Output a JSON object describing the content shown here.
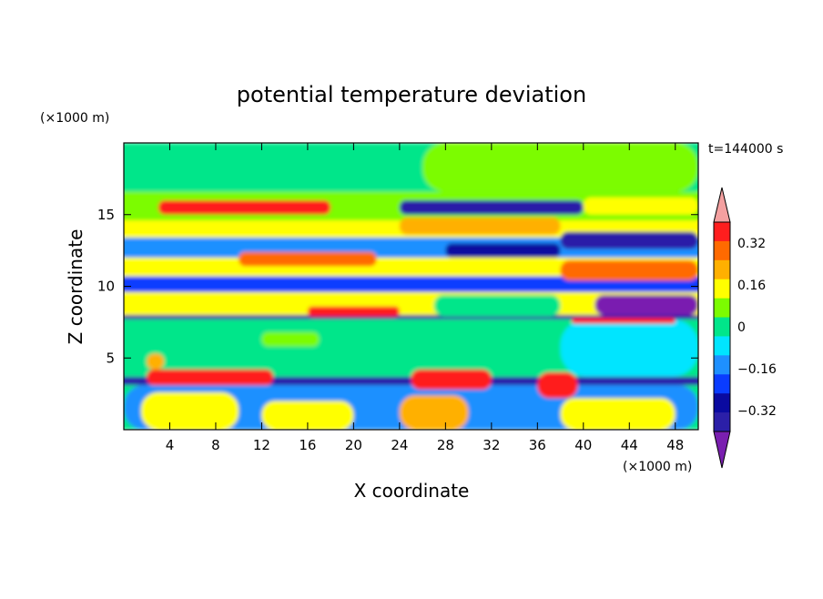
{
  "chart_data": {
    "type": "heatmap",
    "title": "potential temperature deviation",
    "xlabel": "X coordinate",
    "ylabel": "Z coordinate",
    "x_unit": "(×1000 m)",
    "y_unit": "(×1000 m)",
    "time_label": "t=144000 s",
    "xlim": [
      0,
      50
    ],
    "ylim": [
      0,
      20
    ],
    "x_ticks": [
      4,
      8,
      12,
      16,
      20,
      24,
      28,
      32,
      36,
      40,
      44,
      48
    ],
    "y_ticks": [
      5,
      10,
      15
    ],
    "colorbar": {
      "levels": [
        -0.48,
        -0.4,
        -0.32,
        -0.24,
        -0.16,
        -0.08,
        0,
        0.08,
        0.16,
        0.24,
        0.32,
        0.4,
        0.48
      ],
      "tick_values": [
        0.32,
        0.16,
        0,
        -0.16,
        -0.32
      ],
      "tick_labels": [
        "0.32",
        "0.16",
        "0",
        "−0.16",
        "−0.32"
      ],
      "colors": [
        "#7a1fb0",
        "#2b1fa8",
        "#0a0aa0",
        "#0a3cff",
        "#1e90ff",
        "#00e5ff",
        "#00e68a",
        "#7cfc00",
        "#ffff00",
        "#ffb000",
        "#ff6a00",
        "#ff1e1e",
        "#f4a0a0"
      ],
      "extend": "both"
    },
    "bands": [
      {
        "z0": 0,
        "z1": 3.1,
        "value": 0.04
      },
      {
        "z0": 3.1,
        "z1": 3.7,
        "value": -0.36
      },
      {
        "z0": 3.7,
        "z1": 7.7,
        "value": 0.0
      },
      {
        "z0": 7.7,
        "z1": 8.0,
        "value": -0.36
      },
      {
        "z0": 8.0,
        "z1": 9.6,
        "value": 0.2
      },
      {
        "z0": 9.6,
        "z1": 10.7,
        "value": -0.2
      },
      {
        "z0": 10.7,
        "z1": 12.0,
        "value": 0.22
      },
      {
        "z0": 12.0,
        "z1": 13.4,
        "value": -0.12
      },
      {
        "z0": 13.4,
        "z1": 14.6,
        "value": 0.22
      },
      {
        "z0": 14.6,
        "z1": 16.6,
        "value": 0.12
      },
      {
        "z0": 16.6,
        "z1": 20,
        "value": 0.02
      }
    ],
    "features": [
      {
        "x0": 0,
        "x1": 50,
        "z0": 0,
        "z1": 3.1,
        "value": -0.1
      },
      {
        "x0": 1.5,
        "x1": 10,
        "z0": 0,
        "z1": 2.6,
        "value": 0.2
      },
      {
        "x0": 12,
        "x1": 20,
        "z0": 0,
        "z1": 2.0,
        "value": 0.22
      },
      {
        "x0": 24,
        "x1": 30,
        "z0": 0,
        "z1": 2.4,
        "value": 0.26
      },
      {
        "x0": 38,
        "x1": 48,
        "z0": 0,
        "z1": 2.2,
        "value": 0.2
      },
      {
        "x0": 2,
        "x1": 13,
        "z0": 3.1,
        "z1": 4.2,
        "value": 0.44
      },
      {
        "x0": 25,
        "x1": 32,
        "z0": 2.8,
        "z1": 4.2,
        "value": 0.44
      },
      {
        "x0": 36,
        "x1": 39.5,
        "z0": 2.2,
        "z1": 4.0,
        "value": 0.44
      },
      {
        "x0": 2,
        "x1": 3.5,
        "z0": 4.2,
        "z1": 5.3,
        "value": 0.3
      },
      {
        "x0": 41,
        "x1": 44.5,
        "z0": 4.6,
        "z1": 6.2,
        "value": 0.36
      },
      {
        "x0": 12,
        "x1": 17,
        "z0": 5.8,
        "z1": 6.8,
        "value": 0.14
      },
      {
        "x0": 38,
        "x1": 50,
        "z0": 3.7,
        "z1": 7.7,
        "value": -0.06
      },
      {
        "x0": 39,
        "x1": 48,
        "z0": 7.4,
        "z1": 7.8,
        "value": 0.44
      },
      {
        "x0": 16,
        "x1": 24,
        "z0": 7.9,
        "z1": 8.6,
        "value": 0.44
      },
      {
        "x0": 41,
        "x1": 50,
        "z0": 8.0,
        "z1": 9.4,
        "value": -0.44
      },
      {
        "x0": 27,
        "x1": 38,
        "z0": 7.9,
        "z1": 9.4,
        "value": 0.06
      },
      {
        "x0": 38,
        "x1": 50,
        "z0": 10.4,
        "z1": 11.8,
        "value": 0.36
      },
      {
        "x0": 10,
        "x1": 22,
        "z0": 11.4,
        "z1": 12.4,
        "value": 0.34
      },
      {
        "x0": 28,
        "x1": 38,
        "z0": 12.0,
        "z1": 13.0,
        "value": -0.32
      },
      {
        "x0": 38,
        "x1": 50,
        "z0": 12.6,
        "z1": 13.8,
        "value": -0.36
      },
      {
        "x0": 24,
        "x1": 38,
        "z0": 13.6,
        "z1": 14.8,
        "value": 0.3
      },
      {
        "x0": 3,
        "x1": 18,
        "z0": 15.0,
        "z1": 16.0,
        "value": 0.4
      },
      {
        "x0": 6,
        "x1": 11,
        "z0": 15.4,
        "z1": 15.8,
        "value": 0.46
      },
      {
        "x0": 24,
        "x1": 40,
        "z0": 15.0,
        "z1": 16.0,
        "value": -0.34
      },
      {
        "x0": 40,
        "x1": 50,
        "z0": 15.0,
        "z1": 16.2,
        "value": 0.2
      },
      {
        "x0": 26,
        "x1": 50,
        "z0": 16.6,
        "z1": 20,
        "value": 0.08
      }
    ]
  }
}
